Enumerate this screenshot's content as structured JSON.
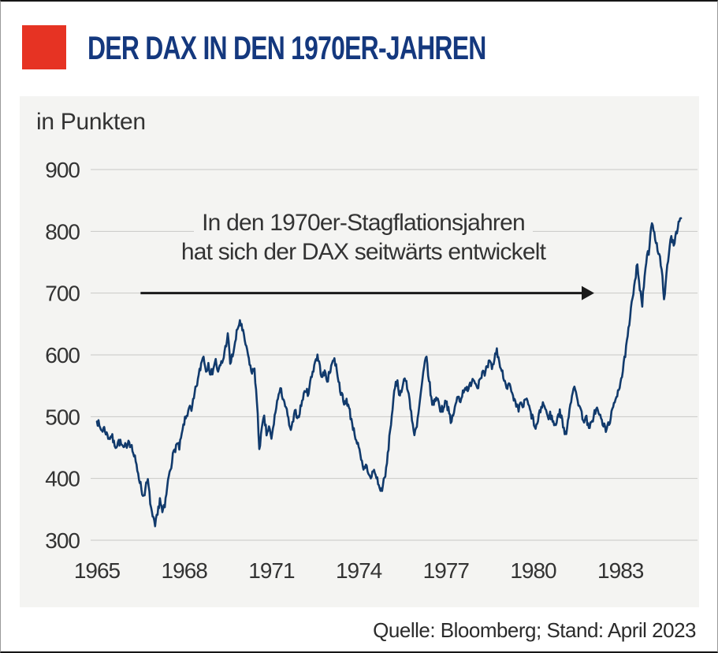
{
  "header": {
    "title": "DER DAX IN DEN 1970ER-JAHREN",
    "title_color": "#14387e",
    "accent_color": "#e63323"
  },
  "chart_data": {
    "type": "line",
    "title": "DER DAX IN DEN 1970ER-JAHREN",
    "unit_label": "in Punkten",
    "xlabel": "",
    "ylabel": "in Punkten",
    "xlim": [
      1965,
      1985.2
    ],
    "ylim": [
      300,
      900
    ],
    "grid": "horizontal-only",
    "grid_color": "#c9c9c7",
    "panel_background": "#f4f4f2",
    "tick_color": "#333333",
    "yticks": [
      300,
      400,
      500,
      600,
      700,
      800,
      900
    ],
    "xticks": [
      1965,
      1968,
      1971,
      1974,
      1977,
      1980,
      1983
    ],
    "legend": "none",
    "annotation": {
      "line1": "In den 1970er-Stagflationsjahren",
      "line2": "hat sich der DAX seitwärts entwickelt",
      "arrow_from_year": 1966.5,
      "arrow_to_year": 1982.1,
      "arrow_value": 700,
      "arrow_color": "#1a1a1a"
    },
    "series": [
      {
        "name": "DAX",
        "color": "#113a6c",
        "stroke_width": 2.6,
        "start_year": 1965,
        "interval_years": 0.0833333,
        "values": [
          495,
          484,
          478,
          482,
          473,
          466,
          468,
          459,
          452,
          461,
          455,
          448,
          453,
          462,
          455,
          441,
          426,
          409,
          392,
          371,
          383,
          397,
          361,
          336,
          322,
          341,
          368,
          345,
          353,
          386,
          412,
          429,
          446,
          456,
          448,
          471,
          489,
          501,
          516,
          508,
          529,
          549,
          566,
          586,
          599,
          573,
          589,
          566,
          579,
          592,
          571,
          583,
          591,
          613,
          633,
          586,
          599,
          619,
          641,
          656,
          639,
          623,
          606,
          586,
          569,
          579,
          523,
          449,
          479,
          499,
          471,
          483,
          463,
          489,
          516,
          536,
          543,
          529,
          513,
          496,
          476,
          493,
          509,
          499,
          516,
          529,
          543,
          536,
          556,
          573,
          589,
          599,
          581,
          563,
          573,
          559,
          569,
          589,
          593,
          576,
          553,
          536,
          519,
          529,
          513,
          496,
          479,
          463,
          449,
          429,
          413,
          423,
          409,
          399,
          413,
          406,
          393,
          379,
          389,
          403,
          439,
          479,
          513,
          546,
          559,
          533,
          549,
          563,
          546,
          529,
          496,
          469,
          483,
          516,
          549,
          579,
          596,
          559,
          529,
          519,
          533,
          523,
          509,
          516,
          526,
          513,
          489,
          503,
          519,
          533,
          526,
          541,
          549,
          539,
          553,
          563,
          556,
          549,
          561,
          573,
          566,
          579,
          589,
          576,
          593,
          609,
          589,
          573,
          561,
          549,
          556,
          539,
          526,
          516,
          509,
          523,
          516,
          529,
          519,
          506,
          496,
          479,
          493,
          509,
          523,
          513,
          499,
          506,
          493,
          486,
          499,
          509,
          496,
          469,
          483,
          513,
          536,
          546,
          533,
          519,
          506,
          493,
          499,
          479,
          489,
          503,
          513,
          506,
          496,
          486,
          476,
          489,
          499,
          513,
          529,
          543,
          556,
          573,
          599,
          629,
          659,
          693,
          723,
          749,
          706,
          679,
          729,
          759,
          773,
          816,
          799,
          779,
          763,
          736,
          693,
          729,
          763,
          793,
          779,
          799,
          813,
          819
        ],
        "visual_noise_points": 7
      }
    ],
    "source": "Quelle: Bloomberg; Stand: April 2023"
  }
}
